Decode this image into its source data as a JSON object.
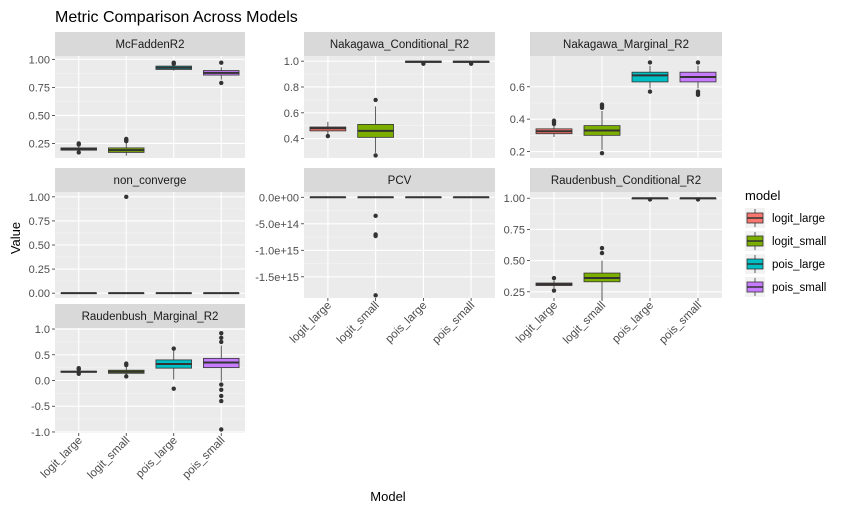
{
  "chart_data": {
    "type": "boxplot",
    "title": "Metric Comparison Across Models",
    "xlabel": "Model",
    "ylabel": "Value",
    "categories": [
      "logit_large",
      "logit_small",
      "pois_large",
      "pois_small"
    ],
    "tick_text": [
      "logit_large",
      "logit_small",
      "pois_large",
      "pois_small"
    ],
    "legend": {
      "title": "model",
      "position": "right",
      "entries": [
        {
          "label": "logit_large",
          "color": "#F8766D"
        },
        {
          "label": "logit_small",
          "color": "#7CAE00"
        },
        {
          "label": "pois_large",
          "color": "#00BFC4"
        },
        {
          "label": "pois_small",
          "color": "#C77CFF"
        }
      ]
    },
    "grid": true,
    "facets": [
      {
        "name": "McFaddenR2",
        "ylim": [
          0.12,
          1.03
        ],
        "yticks": [
          0.25,
          0.5,
          0.75,
          1.0
        ],
        "ytick_labels": [
          "0.25",
          "0.50",
          "0.75",
          "1.00"
        ],
        "boxes": [
          {
            "q1": 0.19,
            "median": 0.2,
            "q3": 0.21,
            "whislo": 0.18,
            "whishi": 0.22,
            "outliers": [
              0.17,
              0.24,
              0.25
            ]
          },
          {
            "q1": 0.17,
            "median": 0.19,
            "q3": 0.21,
            "whislo": 0.14,
            "whishi": 0.25,
            "outliers": [
              0.27,
              0.28,
              0.29
            ]
          },
          {
            "q1": 0.91,
            "median": 0.925,
            "q3": 0.94,
            "whislo": 0.9,
            "whishi": 0.95,
            "outliers": [
              0.96,
              0.97
            ]
          },
          {
            "q1": 0.86,
            "median": 0.88,
            "q3": 0.9,
            "whislo": 0.82,
            "whishi": 0.93,
            "outliers": [
              0.79,
              0.97
            ]
          }
        ]
      },
      {
        "name": "Nakagawa_Conditional_R2",
        "ylim": [
          0.25,
          1.04
        ],
        "yticks": [
          0.4,
          0.6,
          0.8,
          1.0
        ],
        "ytick_labels": [
          "0.4",
          "0.6",
          "0.8",
          "1.0"
        ],
        "boxes": [
          {
            "q1": 0.46,
            "median": 0.48,
            "q3": 0.49,
            "whislo": 0.43,
            "whishi": 0.53,
            "outliers": [
              0.42
            ]
          },
          {
            "q1": 0.41,
            "median": 0.46,
            "q3": 0.51,
            "whislo": 0.29,
            "whishi": 0.65,
            "outliers": [
              0.27,
              0.7
            ]
          },
          {
            "q1": 0.99,
            "median": 0.995,
            "q3": 1.0,
            "whislo": 0.985,
            "whishi": 1.0,
            "outliers": [
              0.98
            ]
          },
          {
            "q1": 0.99,
            "median": 0.995,
            "q3": 1.0,
            "whislo": 0.985,
            "whishi": 1.0,
            "outliers": [
              0.98
            ]
          }
        ]
      },
      {
        "name": "Nakagawa_Marginal_R2",
        "ylim": [
          0.16,
          0.79
        ],
        "yticks": [
          0.2,
          0.4,
          0.6
        ],
        "ytick_labels": [
          "0.2",
          "0.4",
          "0.6"
        ],
        "boxes": [
          {
            "q1": 0.31,
            "median": 0.325,
            "q3": 0.34,
            "whislo": 0.29,
            "whishi": 0.36,
            "outliers": [
              0.37,
              0.38,
              0.39
            ]
          },
          {
            "q1": 0.3,
            "median": 0.33,
            "q3": 0.36,
            "whislo": 0.21,
            "whishi": 0.45,
            "outliers": [
              0.19,
              0.47,
              0.48,
              0.49
            ]
          },
          {
            "q1": 0.63,
            "median": 0.67,
            "q3": 0.69,
            "whislo": 0.59,
            "whishi": 0.73,
            "outliers": [
              0.57,
              0.75
            ]
          },
          {
            "q1": 0.63,
            "median": 0.66,
            "q3": 0.69,
            "whislo": 0.59,
            "whishi": 0.73,
            "outliers": [
              0.55,
              0.56,
              0.57,
              0.75
            ]
          }
        ]
      },
      {
        "name": "non_converge",
        "ylim": [
          -0.05,
          1.05
        ],
        "yticks": [
          0.0,
          0.25,
          0.5,
          0.75,
          1.0
        ],
        "ytick_labels": [
          "0.00",
          "0.25",
          "0.50",
          "0.75",
          "1.00"
        ],
        "boxes": [
          {
            "q1": 0.0,
            "median": 0.0,
            "q3": 0.0,
            "whislo": 0.0,
            "whishi": 0.0,
            "outliers": []
          },
          {
            "q1": 0.0,
            "median": 0.0,
            "q3": 0.0,
            "whislo": 0.0,
            "whishi": 0.0,
            "outliers": [
              1.0
            ]
          },
          {
            "q1": 0.0,
            "median": 0.0,
            "q3": 0.0,
            "whislo": 0.0,
            "whishi": 0.0,
            "outliers": []
          },
          {
            "q1": 0.0,
            "median": 0.0,
            "q3": 0.0,
            "whislo": 0.0,
            "whishi": 0.0,
            "outliers": []
          }
        ]
      },
      {
        "name": "PCV",
        "ylim": [
          -1900000000000000.0,
          100000000000000.0
        ],
        "yticks": [
          0,
          -500000000000000.0,
          -1000000000000000.0,
          -1500000000000000.0
        ],
        "ytick_labels": [
          "0.0e+00",
          "-5.0e+14",
          "-1.0e+15",
          "-1.5e+15"
        ],
        "boxes": [
          {
            "q1": 0,
            "median": 0,
            "q3": 0,
            "whislo": 0,
            "whishi": 0,
            "outliers": []
          },
          {
            "q1": 0,
            "median": 0,
            "q3": 0,
            "whislo": 0,
            "whishi": 0,
            "outliers": [
              -350000000000000.0,
              -700000000000000.0,
              -730000000000000.0,
              -1850000000000000.0
            ]
          },
          {
            "q1": 0,
            "median": 0,
            "q3": 0,
            "whislo": 0,
            "whishi": 0,
            "outliers": []
          },
          {
            "q1": 0,
            "median": 0,
            "q3": 0,
            "whislo": 0,
            "whishi": 0,
            "outliers": []
          }
        ]
      },
      {
        "name": "Raudenbush_Conditional_R2",
        "ylim": [
          0.2,
          1.05
        ],
        "yticks": [
          0.25,
          0.5,
          0.75,
          1.0
        ],
        "ytick_labels": [
          "0.25",
          "0.50",
          "0.75",
          "1.00"
        ],
        "boxes": [
          {
            "q1": 0.3,
            "median": 0.31,
            "q3": 0.32,
            "whislo": 0.28,
            "whishi": 0.34,
            "outliers": [
              0.26,
              0.36
            ]
          },
          {
            "q1": 0.33,
            "median": 0.36,
            "q3": 0.4,
            "whislo": 0.19,
            "whishi": 0.5,
            "outliers": [
              0.56,
              0.6
            ]
          },
          {
            "q1": 0.995,
            "median": 1.0,
            "q3": 1.0,
            "whislo": 0.99,
            "whishi": 1.0,
            "outliers": [
              0.99
            ]
          },
          {
            "q1": 0.995,
            "median": 1.0,
            "q3": 1.0,
            "whislo": 0.99,
            "whishi": 1.0,
            "outliers": [
              0.99
            ]
          }
        ]
      },
      {
        "name": "Raudenbush_Marginal_R2",
        "ylim": [
          -1.02,
          1.02
        ],
        "yticks": [
          -1.0,
          -0.5,
          0.0,
          0.5,
          1.0
        ],
        "ytick_labels": [
          "-1.0",
          "-0.5",
          "0.0",
          "0.5",
          "1.0"
        ],
        "boxes": [
          {
            "q1": 0.16,
            "median": 0.17,
            "q3": 0.18,
            "whislo": 0.15,
            "whishi": 0.2,
            "outliers": [
              0.13,
              0.22,
              0.24
            ]
          },
          {
            "q1": 0.14,
            "median": 0.17,
            "q3": 0.2,
            "whislo": 0.09,
            "whishi": 0.28,
            "outliers": [
              0.08,
              0.3,
              0.33
            ]
          },
          {
            "q1": 0.24,
            "median": 0.32,
            "q3": 0.4,
            "whislo": 0.02,
            "whishi": 0.6,
            "outliers": [
              -0.16,
              0.62
            ]
          },
          {
            "q1": 0.25,
            "median": 0.35,
            "q3": 0.43,
            "whislo": -0.02,
            "whishi": 0.68,
            "outliers": [
              -0.08,
              -0.18,
              -0.3,
              -0.4,
              -0.95,
              0.75,
              0.83,
              0.92
            ]
          }
        ]
      }
    ]
  }
}
